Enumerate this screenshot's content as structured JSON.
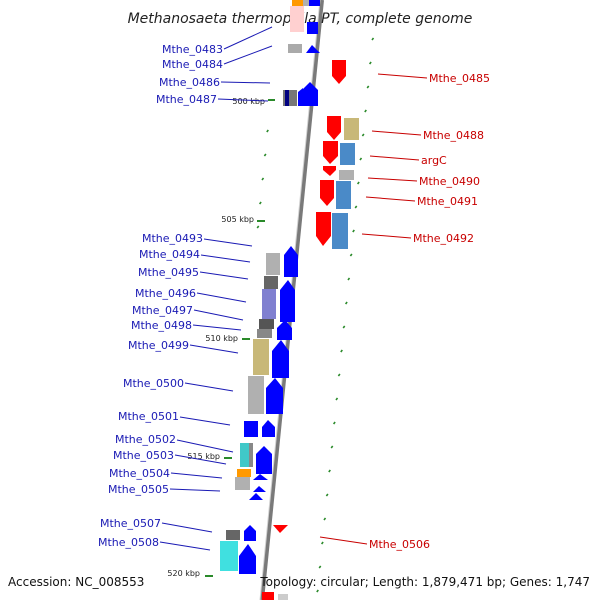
{
  "title": "Methanosaeta thermophila PT, complete genome",
  "accession": "Accession: NC_008553",
  "topology": "Topology: circular; Length: 1,879,471 bp; Genes: 1,747",
  "colors": {
    "forward": "#0000ff",
    "reverse": "#ff0000",
    "backbone": "#7a7a7a",
    "tick": "#2a8a2a",
    "label_blue": "#1a1ab4",
    "label_red": "#c80000"
  },
  "scale": [
    "500 kbp",
    "505 kbp",
    "510 kbp",
    "515 kbp",
    "520 kbp"
  ],
  "left_labels": [
    "Mthe_0483",
    "Mthe_0484",
    "Mthe_0486",
    "Mthe_0487",
    "Mthe_0493",
    "Mthe_0494",
    "Mthe_0495",
    "Mthe_0496",
    "Mthe_0497",
    "Mthe_0498",
    "Mthe_0499",
    "Mthe_0500",
    "Mthe_0501",
    "Mthe_0502",
    "Mthe_0503",
    "Mthe_0504",
    "Mthe_0505",
    "Mthe_0507",
    "Mthe_0508"
  ],
  "right_labels": [
    "Mthe_0485",
    "Mthe_0488",
    "argC",
    "Mthe_0490",
    "Mthe_0491",
    "Mthe_0492",
    "Mthe_0506"
  ]
}
